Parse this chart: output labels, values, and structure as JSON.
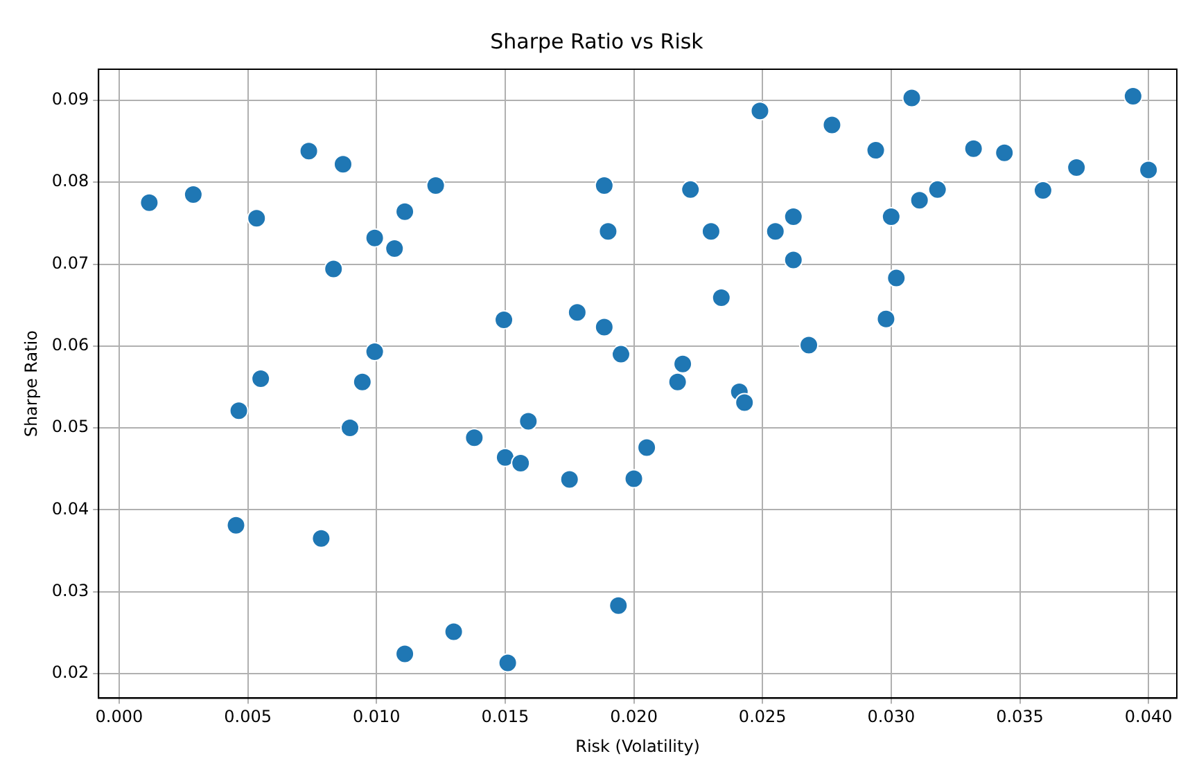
{
  "chart_data": {
    "type": "scatter",
    "title": "Sharpe Ratio vs Risk",
    "xlabel": "Risk (Volatility)",
    "ylabel": "Sharpe Ratio",
    "x": [
      0.00117,
      0.00288,
      0.00534,
      0.0055,
      0.00465,
      0.00454,
      0.00737,
      0.0087,
      0.00833,
      0.00785,
      0.00993,
      0.0107,
      0.0111,
      0.0123,
      0.00993,
      0.00945,
      0.00897,
      0.0111,
      0.013,
      0.0151,
      0.0138,
      0.01495,
      0.015,
      0.0156,
      0.0159,
      0.0175,
      0.0178,
      0.01885,
      0.019,
      0.01885,
      0.0195,
      0.0194,
      0.02,
      0.0205,
      0.0217,
      0.0219,
      0.0222,
      0.023,
      0.0234,
      0.0241,
      0.0243,
      0.0249,
      0.0255,
      0.0262,
      0.0262,
      0.0268,
      0.0277,
      0.0294,
      0.03,
      0.0302,
      0.0298,
      0.0308,
      0.0311,
      0.0318,
      0.0332,
      0.0344,
      0.0359,
      0.0372,
      0.0394,
      0.04
    ],
    "series": [
      {
        "color": "#1f77b4",
        "values": [
          0.0775,
          0.0785,
          0.0756,
          0.056,
          0.0521,
          0.0381,
          0.0838,
          0.0822,
          0.0694,
          0.0365,
          0.0732,
          0.0719,
          0.0764,
          0.0796,
          0.0593,
          0.0556,
          0.05,
          0.0224,
          0.0251,
          0.0213,
          0.0488,
          0.0632,
          0.0464,
          0.0457,
          0.0508,
          0.0437,
          0.0641,
          0.0796,
          0.074,
          0.0623,
          0.059,
          0.0283,
          0.0438,
          0.0476,
          0.0556,
          0.0578,
          0.0791,
          0.074,
          0.0659,
          0.0544,
          0.0531,
          0.0887,
          0.074,
          0.0758,
          0.0705,
          0.0601,
          0.087,
          0.0839,
          0.0758,
          0.0683,
          0.0633,
          0.0903,
          0.0778,
          0.0791,
          0.0841,
          0.0836,
          0.079,
          0.0818,
          0.0905,
          0.0815
        ]
      }
    ],
    "xlim": [
      -0.0008,
      0.0411
    ],
    "ylim": [
      0.017,
      0.0938
    ],
    "xticks": [
      {
        "value": 0,
        "label": "0.000"
      },
      {
        "value": 0.005,
        "label": "0.005"
      },
      {
        "value": 0.01,
        "label": "0.010"
      },
      {
        "value": 0.015,
        "label": "0.015"
      },
      {
        "value": 0.02,
        "label": "0.020"
      },
      {
        "value": 0.025,
        "label": "0.025"
      },
      {
        "value": 0.03,
        "label": "0.030"
      },
      {
        "value": 0.035,
        "label": "0.035"
      },
      {
        "value": 0.04,
        "label": "0.040"
      }
    ],
    "yticks": [
      0.02,
      0.03,
      0.04,
      0.05,
      0.06,
      0.07,
      0.08,
      0.09
    ],
    "grid": true,
    "legend": false,
    "marker": "circle"
  }
}
